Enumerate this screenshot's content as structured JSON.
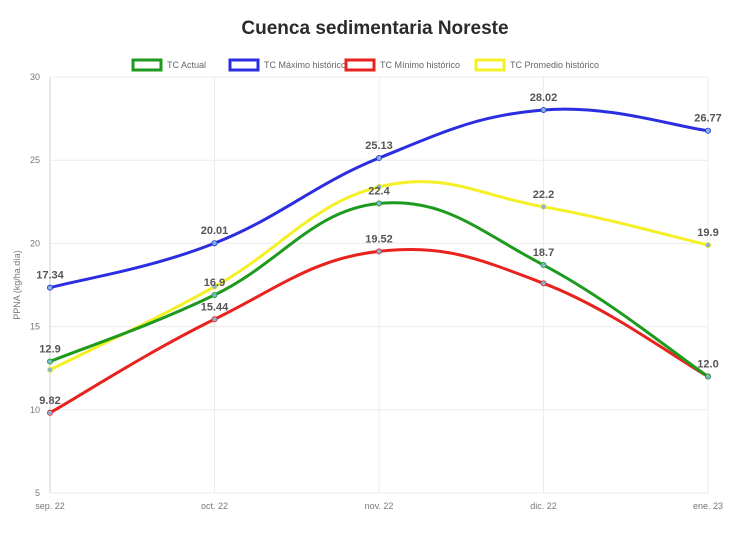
{
  "chart_data": {
    "type": "line",
    "title": "Cuenca sedimentaria Noreste",
    "xlabel": "",
    "ylabel": "PPNA (kg/ha.día)",
    "categories": [
      "sep. 22",
      "oct. 22",
      "nov. 22",
      "dic. 22",
      "ene. 23"
    ],
    "ylim": [
      5,
      30
    ],
    "yticks": [
      "5",
      "10",
      "15",
      "20",
      "25",
      "30"
    ],
    "grid": true,
    "legend_position": "top-center",
    "series": [
      {
        "name": "TC Actual",
        "color": "#1e9a1e",
        "values": [
          12.9,
          16.9,
          22.4,
          18.7,
          12.0
        ],
        "labels": [
          "12.9",
          "16.9",
          "22.4",
          "18.7",
          "12.0"
        ]
      },
      {
        "name": "TC Máximo histórico",
        "color": "#2a2de0",
        "values": [
          17.34,
          20.01,
          25.13,
          28.02,
          26.77
        ],
        "labels": [
          "17.34",
          "20.01",
          "25.13",
          "28.02",
          "26.77"
        ]
      },
      {
        "name": "TC Mínimo histórico",
        "color": "#e8231e",
        "values": [
          9.82,
          15.44,
          19.52,
          17.6,
          12.0
        ],
        "labels": [
          "9.82",
          "15.44",
          "19.52",
          null,
          null
        ]
      },
      {
        "name": "TC Promedio histórico",
        "color": "#f5f025",
        "values": [
          12.4,
          17.4,
          23.4,
          22.2,
          19.9
        ],
        "labels": [
          null,
          null,
          null,
          "22.2",
          "19.9"
        ]
      }
    ]
  }
}
